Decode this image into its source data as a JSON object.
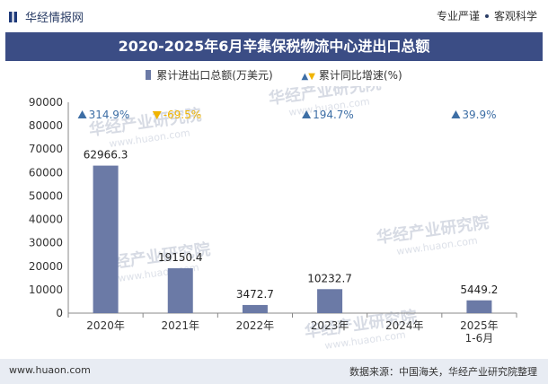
{
  "header": {
    "brand": "华经情报网",
    "tagline_left": "专业严谨",
    "tagline_right": "客观科学"
  },
  "chart_data": {
    "type": "bar",
    "title": "2020-2025年6月辛集保税物流中心进出口总额",
    "categories": [
      "2020年",
      "2021年",
      "2022年",
      "2023年",
      "2024年",
      "2025年\n1-6月"
    ],
    "ylim": [
      0,
      90000
    ],
    "yticks": [
      0,
      10000,
      20000,
      30000,
      40000,
      50000,
      60000,
      70000,
      80000,
      90000
    ],
    "series": [
      {
        "name": "累计进出口总额(万美元)",
        "type": "bar",
        "values": [
          62966.3,
          19150.4,
          3472.7,
          10232.7,
          null,
          5449.2
        ],
        "labels": [
          "62966.3",
          "19150.4",
          "3472.7",
          "10232.7",
          "",
          "5449.2"
        ]
      },
      {
        "name": "累计同比增速(%)",
        "type": "marker",
        "values": [
          314.9,
          -69.5,
          null,
          194.7,
          null,
          39.9
        ],
        "labels": [
          "314.9%",
          "-69.5%",
          "",
          "194.7%",
          "",
          "39.9%"
        ]
      }
    ],
    "colors": {
      "bar": "#6b7aa6",
      "up": "#3d6ea5",
      "down": "#f0b400",
      "axis": "#888888"
    }
  },
  "watermark": {
    "main": "华经产业研究院",
    "sub": "www.huaon.com"
  },
  "footer": {
    "site": "www.huaon.com",
    "source": "数据来源：中国海关，华经产业研究院整理"
  }
}
